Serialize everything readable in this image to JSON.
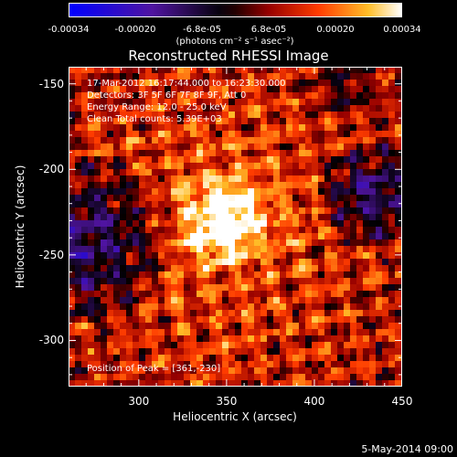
{
  "colorbar": {
    "ticks": [
      "-0.00034",
      "-0.00020",
      "-6.8e-05",
      "6.8e-05",
      "0.00020",
      "0.00034"
    ],
    "unit": "(photons cm⁻² s⁻¹ asec⁻²)",
    "range": [
      -0.00034,
      0.00034
    ]
  },
  "title": "Reconstructed RHESSI Image",
  "info": {
    "time": "17-Mar-2012 16:17:44.000 to 16:23:30.000",
    "detectors": "Detectors: 3F 5F 6F 7F 8F 9F, Att 0",
    "energy": "Energy Range: 12.0 - 25.0 keV",
    "clean": "Clean     Total counts: 5.39E+03"
  },
  "peak": "Position of Peak = [361,-230]",
  "axes": {
    "xlabel": "Heliocentric X (arcsec)",
    "ylabel": "Heliocentric Y (arcsec)",
    "xticks": [
      "300",
      "350",
      "400",
      "450"
    ],
    "yticks": [
      "-150",
      "-200",
      "-250",
      "-300"
    ],
    "xlim": [
      260,
      450
    ],
    "ylim": [
      -327,
      -140
    ]
  },
  "date": "5-May-2014 09:00",
  "colors": {
    "background": "#000000",
    "text": "#ffffff"
  }
}
